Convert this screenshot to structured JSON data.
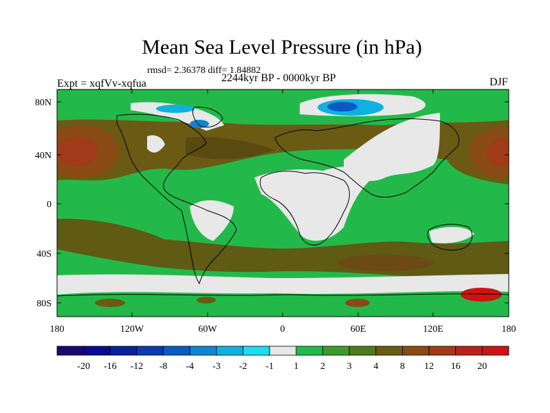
{
  "title": "Mean Sea Level Pressure (in hPa)",
  "stats": "rmsd= 2.36378 diff= 1.84882",
  "experiment": "Expt = xqfVv-xqfua",
  "period": "2244kyr BP - 0000kyr BP",
  "season": "DJF",
  "lat_ticks": [
    "80N",
    "40N",
    "0",
    "40S",
    "80S"
  ],
  "lon_ticks": [
    "180",
    "120W",
    "60W",
    "0",
    "60E",
    "120E",
    "180"
  ],
  "colorbar": {
    "labels": [
      "-20",
      "-16",
      "-12",
      "-8",
      "-4",
      "-3",
      "-2",
      "-1",
      "1",
      "2",
      "3",
      "4",
      "8",
      "12",
      "16",
      "20"
    ],
    "colors": [
      "#1a0a6e",
      "#0a0a8c",
      "#08209c",
      "#0a3aad",
      "#0a5ac4",
      "#0f86d2",
      "#10b0e0",
      "#1fdcee",
      "#e8e8e8",
      "#22b94a",
      "#3e9a2c",
      "#4e7a1e",
      "#6b5a14",
      "#8a4a16",
      "#a03a18",
      "#b8241a",
      "#cc1414"
    ]
  },
  "colors": {
    "ocean_green": "#22b94a",
    "positive_brown": "#6b5a14",
    "near_zero_grey": "#e8e8e8",
    "negative_blue": "#0f86d2"
  }
}
